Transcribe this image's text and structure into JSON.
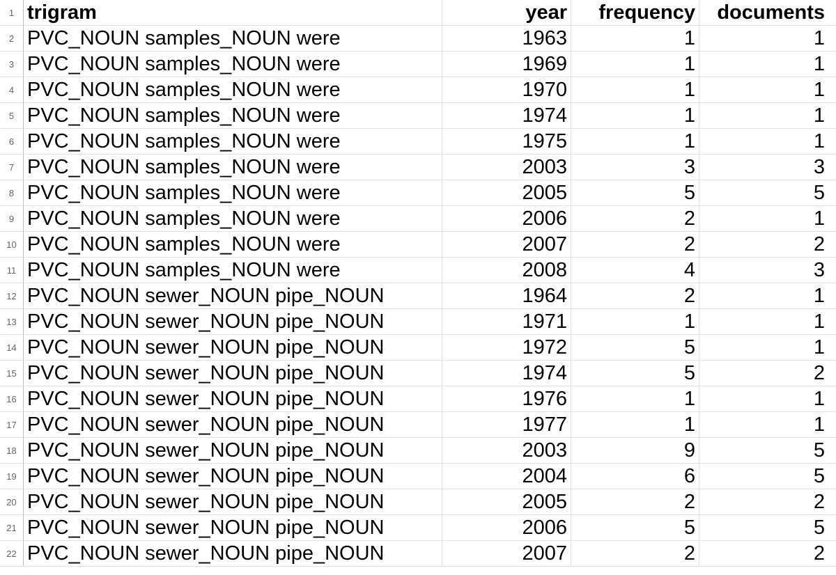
{
  "headers": {
    "row_number": "1",
    "trigram": "trigram",
    "year": "year",
    "frequency": "frequency",
    "documents": "documents"
  },
  "rows": [
    {
      "n": "2",
      "trigram": "PVC_NOUN samples_NOUN were",
      "year": "1963",
      "frequency": "1",
      "documents": "1"
    },
    {
      "n": "3",
      "trigram": "PVC_NOUN samples_NOUN were",
      "year": "1969",
      "frequency": "1",
      "documents": "1"
    },
    {
      "n": "4",
      "trigram": "PVC_NOUN samples_NOUN were",
      "year": "1970",
      "frequency": "1",
      "documents": "1"
    },
    {
      "n": "5",
      "trigram": "PVC_NOUN samples_NOUN were",
      "year": "1974",
      "frequency": "1",
      "documents": "1"
    },
    {
      "n": "6",
      "trigram": "PVC_NOUN samples_NOUN were",
      "year": "1975",
      "frequency": "1",
      "documents": "1"
    },
    {
      "n": "7",
      "trigram": "PVC_NOUN samples_NOUN were",
      "year": "2003",
      "frequency": "3",
      "documents": "3"
    },
    {
      "n": "8",
      "trigram": "PVC_NOUN samples_NOUN were",
      "year": "2005",
      "frequency": "5",
      "documents": "5"
    },
    {
      "n": "9",
      "trigram": "PVC_NOUN samples_NOUN were",
      "year": "2006",
      "frequency": "2",
      "documents": "1"
    },
    {
      "n": "10",
      "trigram": "PVC_NOUN samples_NOUN were",
      "year": "2007",
      "frequency": "2",
      "documents": "2"
    },
    {
      "n": "11",
      "trigram": "PVC_NOUN samples_NOUN were",
      "year": "2008",
      "frequency": "4",
      "documents": "3"
    },
    {
      "n": "12",
      "trigram": "PVC_NOUN sewer_NOUN pipe_NOUN",
      "year": "1964",
      "frequency": "2",
      "documents": "1"
    },
    {
      "n": "13",
      "trigram": "PVC_NOUN sewer_NOUN pipe_NOUN",
      "year": "1971",
      "frequency": "1",
      "documents": "1"
    },
    {
      "n": "14",
      "trigram": "PVC_NOUN sewer_NOUN pipe_NOUN",
      "year": "1972",
      "frequency": "5",
      "documents": "1"
    },
    {
      "n": "15",
      "trigram": "PVC_NOUN sewer_NOUN pipe_NOUN",
      "year": "1974",
      "frequency": "5",
      "documents": "2"
    },
    {
      "n": "16",
      "trigram": "PVC_NOUN sewer_NOUN pipe_NOUN",
      "year": "1976",
      "frequency": "1",
      "documents": "1"
    },
    {
      "n": "17",
      "trigram": "PVC_NOUN sewer_NOUN pipe_NOUN",
      "year": "1977",
      "frequency": "1",
      "documents": "1"
    },
    {
      "n": "18",
      "trigram": "PVC_NOUN sewer_NOUN pipe_NOUN",
      "year": "2003",
      "frequency": "9",
      "documents": "5"
    },
    {
      "n": "19",
      "trigram": "PVC_NOUN sewer_NOUN pipe_NOUN",
      "year": "2004",
      "frequency": "6",
      "documents": "5"
    },
    {
      "n": "20",
      "trigram": "PVC_NOUN sewer_NOUN pipe_NOUN",
      "year": "2005",
      "frequency": "2",
      "documents": "2"
    },
    {
      "n": "21",
      "trigram": "PVC_NOUN sewer_NOUN pipe_NOUN",
      "year": "2006",
      "frequency": "5",
      "documents": "5"
    },
    {
      "n": "22",
      "trigram": "PVC_NOUN sewer_NOUN pipe_NOUN",
      "year": "2007",
      "frequency": "2",
      "documents": "2"
    }
  ]
}
